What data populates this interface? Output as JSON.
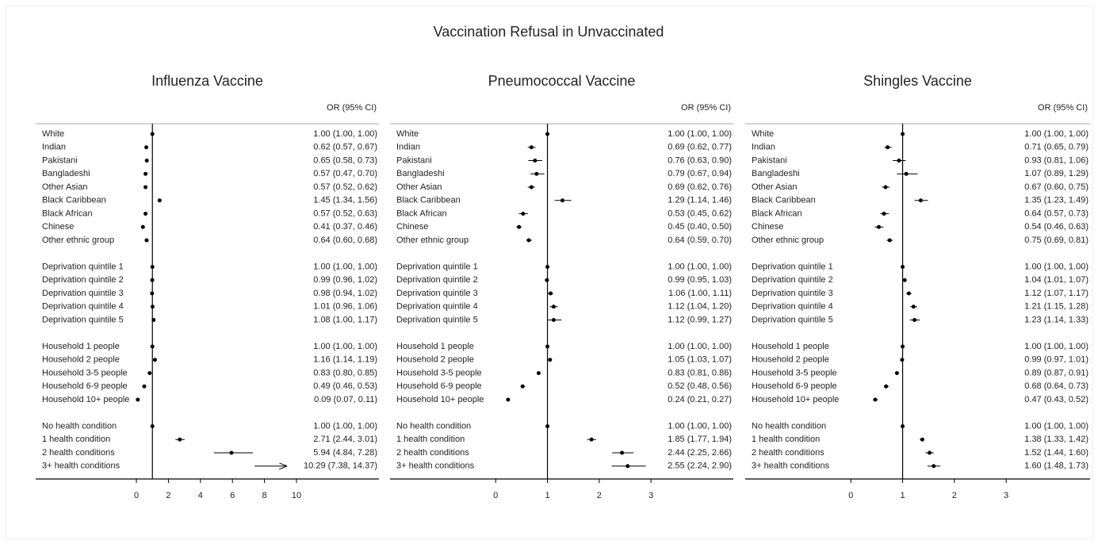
{
  "title": "Vaccination Refusal in Unvaccinated",
  "chart_data": [
    {
      "type": "forest",
      "title": "Influenza Vaccine",
      "ci_header": "OR (95% CI)",
      "reference_line": 1,
      "xlim": [
        -6.29,
        15.15
      ],
      "xticks": [
        0,
        2,
        4,
        6,
        8,
        10
      ],
      "groups": [
        {
          "categories": [
            "White",
            "Indian",
            "Pakistani",
            "Bangladeshi",
            "Other Asian",
            "Black Caribbean",
            "Black African",
            "Chinese",
            "Other ethnic group"
          ],
          "values": [
            1.0,
            0.62,
            0.65,
            0.57,
            0.57,
            1.45,
            0.57,
            0.41,
            0.64
          ],
          "lower": [
            1.0,
            0.57,
            0.58,
            0.47,
            0.52,
            1.34,
            0.52,
            0.37,
            0.6
          ],
          "upper": [
            1.0,
            0.67,
            0.73,
            0.7,
            0.62,
            1.56,
            0.63,
            0.46,
            0.68
          ],
          "value_labels": [
            "1.00 (1.00, 1.00)",
            "0.62 (0.57, 0.67)",
            "0.65 (0.58, 0.73)",
            "0.57 (0.47, 0.70)",
            "0.57 (0.52, 0.62)",
            "1.45 (1.34, 1.56)",
            "0.57 (0.52, 0.63)",
            "0.41 (0.37, 0.46)",
            "0.64 (0.60, 0.68)"
          ]
        },
        {
          "categories": [
            "Deprivation quintile 1",
            "Deprivation quintile 2",
            "Deprivation quintile 3",
            "Deprivation quintile 4",
            "Deprivation quintile 5"
          ],
          "values": [
            1.0,
            0.99,
            0.98,
            1.01,
            1.08
          ],
          "lower": [
            1.0,
            0.96,
            0.94,
            0.96,
            1.0
          ],
          "upper": [
            1.0,
            1.02,
            1.02,
            1.06,
            1.17
          ],
          "value_labels": [
            "1.00 (1.00, 1.00)",
            "0.99 (0.96, 1.02)",
            "0.98 (0.94, 1.02)",
            "1.01 (0.96, 1.06)",
            "1.08 (1.00, 1.17)"
          ]
        },
        {
          "categories": [
            "Household 1 people",
            "Household 2 people",
            "Household 3-5 people",
            "Household 6-9 people",
            "Household 10+ people"
          ],
          "values": [
            1.0,
            1.16,
            0.83,
            0.49,
            0.09
          ],
          "lower": [
            1.0,
            1.14,
            0.8,
            0.46,
            0.07
          ],
          "upper": [
            1.0,
            1.19,
            0.85,
            0.53,
            0.11
          ],
          "value_labels": [
            "1.00 (1.00, 1.00)",
            "1.16 (1.14, 1.19)",
            "0.83 (0.80, 0.85)",
            "0.49 (0.46, 0.53)",
            "0.09 (0.07, 0.11)"
          ]
        },
        {
          "categories": [
            "No health condition",
            "1 health condition",
            "2 health conditions",
            "3+ health conditions"
          ],
          "values": [
            1.0,
            2.71,
            5.94,
            10.29
          ],
          "lower": [
            1.0,
            2.44,
            4.84,
            7.38
          ],
          "upper": [
            1.0,
            3.01,
            7.28,
            14.37
          ],
          "value_labels": [
            "1.00 (1.00, 1.00)",
            "2.71 (2.44, 3.01)",
            "5.94 (4.84, 7.28)",
            "10.29 (7.38, 14.37)"
          ]
        }
      ]
    },
    {
      "type": "forest",
      "title": "Pneumococcal Vaccine",
      "ci_header": "OR (95% CI)",
      "reference_line": 1,
      "xlim": [
        -2.04,
        4.59
      ],
      "xticks": [
        0,
        1,
        2,
        3
      ],
      "groups": [
        {
          "categories": [
            "White",
            "Indian",
            "Pakistani",
            "Bangladeshi",
            "Other Asian",
            "Black Caribbean",
            "Black African",
            "Chinese",
            "Other ethnic group"
          ],
          "values": [
            1.0,
            0.69,
            0.76,
            0.79,
            0.69,
            1.29,
            0.53,
            0.45,
            0.64
          ],
          "lower": [
            1.0,
            0.62,
            0.63,
            0.67,
            0.62,
            1.14,
            0.45,
            0.4,
            0.59
          ],
          "upper": [
            1.0,
            0.77,
            0.9,
            0.94,
            0.76,
            1.46,
            0.62,
            0.5,
            0.7
          ],
          "value_labels": [
            "1.00 (1.00, 1.00)",
            "0.69 (0.62, 0.77)",
            "0.76 (0.63, 0.90)",
            "0.79 (0.67, 0.94)",
            "0.69 (0.62, 0.76)",
            "1.29 (1.14, 1.46)",
            "0.53 (0.45, 0.62)",
            "0.45 (0.40, 0.50)",
            "0.64 (0.59, 0.70)"
          ]
        },
        {
          "categories": [
            "Deprivation quintile 1",
            "Deprivation quintile 2",
            "Deprivation quintile 3",
            "Deprivation quintile 4",
            "Deprivation quintile 5"
          ],
          "values": [
            1.0,
            0.99,
            1.06,
            1.12,
            1.12
          ],
          "lower": [
            1.0,
            0.95,
            1.0,
            1.04,
            0.99
          ],
          "upper": [
            1.0,
            1.03,
            1.11,
            1.2,
            1.27
          ],
          "value_labels": [
            "1.00 (1.00, 1.00)",
            "0.99 (0.95, 1.03)",
            "1.06 (1.00, 1.11)",
            "1.12 (1.04, 1.20)",
            "1.12 (0.99, 1.27)"
          ]
        },
        {
          "categories": [
            "Household 1 people",
            "Household 2 people",
            "Household 3-5 people",
            "Household 6-9 people",
            "Household 10+ people"
          ],
          "values": [
            1.0,
            1.05,
            0.83,
            0.52,
            0.24
          ],
          "lower": [
            1.0,
            1.03,
            0.81,
            0.48,
            0.21
          ],
          "upper": [
            1.0,
            1.07,
            0.86,
            0.56,
            0.27
          ],
          "value_labels": [
            "1.00 (1.00, 1.00)",
            "1.05 (1.03, 1.07)",
            "0.83 (0.81, 0.86)",
            "0.52 (0.48, 0.56)",
            "0.24 (0.21, 0.27)"
          ]
        },
        {
          "categories": [
            "No health condition",
            "1 health condition",
            "2 health conditions",
            "3+ health conditions"
          ],
          "values": [
            1.0,
            1.85,
            2.44,
            2.55
          ],
          "lower": [
            1.0,
            1.77,
            2.25,
            2.24
          ],
          "upper": [
            1.0,
            1.94,
            2.66,
            2.9
          ],
          "value_labels": [
            "1.00 (1.00, 1.00)",
            "1.85 (1.77, 1.94)",
            "2.44 (2.25, 2.66)",
            "2.55 (2.24, 2.90)"
          ]
        }
      ]
    },
    {
      "type": "forest",
      "title": "Shingles Vaccine",
      "ci_header": "OR (95% CI)",
      "reference_line": 1,
      "xlim": [
        -2.04,
        4.62
      ],
      "xticks": [
        0,
        1,
        2,
        3
      ],
      "groups": [
        {
          "categories": [
            "White",
            "Indian",
            "Pakistani",
            "Bangladeshi",
            "Other Asian",
            "Black Caribbean",
            "Black African",
            "Chinese",
            "Other ethnic group"
          ],
          "values": [
            1.0,
            0.71,
            0.93,
            1.07,
            0.67,
            1.35,
            0.64,
            0.54,
            0.75
          ],
          "lower": [
            1.0,
            0.65,
            0.81,
            0.89,
            0.6,
            1.23,
            0.57,
            0.46,
            0.69
          ],
          "upper": [
            1.0,
            0.79,
            1.06,
            1.29,
            0.75,
            1.49,
            0.73,
            0.63,
            0.81
          ],
          "value_labels": [
            "1.00 (1.00, 1.00)",
            "0.71 (0.65, 0.79)",
            "0.93 (0.81, 1.06)",
            "1.07 (0.89, 1.29)",
            "0.67 (0.60, 0.75)",
            "1.35 (1.23, 1.49)",
            "0.64 (0.57, 0.73)",
            "0.54 (0.46, 0.63)",
            "0.75 (0.69, 0.81)"
          ]
        },
        {
          "categories": [
            "Deprivation quintile 1",
            "Deprivation quintile 2",
            "Deprivation quintile 3",
            "Deprivation quintile 4",
            "Deprivation quintile 5"
          ],
          "values": [
            1.0,
            1.04,
            1.12,
            1.21,
            1.23
          ],
          "lower": [
            1.0,
            1.01,
            1.07,
            1.15,
            1.14
          ],
          "upper": [
            1.0,
            1.07,
            1.17,
            1.28,
            1.33
          ],
          "value_labels": [
            "1.00 (1.00, 1.00)",
            "1.04 (1.01, 1.07)",
            "1.12 (1.07, 1.17)",
            "1.21 (1.15, 1.28)",
            "1.23 (1.14, 1.33)"
          ]
        },
        {
          "categories": [
            "Household 1 people",
            "Household 2 people",
            "Household 3-5 people",
            "Household 6-9 people",
            "Household 10+ people"
          ],
          "values": [
            1.0,
            0.99,
            0.89,
            0.68,
            0.47
          ],
          "lower": [
            1.0,
            0.97,
            0.87,
            0.64,
            0.43
          ],
          "upper": [
            1.0,
            1.01,
            0.91,
            0.73,
            0.52
          ],
          "value_labels": [
            "1.00 (1.00, 1.00)",
            "0.99 (0.97, 1.01)",
            "0.89 (0.87, 0.91)",
            "0.68 (0.64, 0.73)",
            "0.47 (0.43, 0.52)"
          ]
        },
        {
          "categories": [
            "No health condition",
            "1 health condition",
            "2 health conditions",
            "3+ health conditions"
          ],
          "values": [
            1.0,
            1.38,
            1.52,
            1.6
          ],
          "lower": [
            1.0,
            1.33,
            1.44,
            1.48
          ],
          "upper": [
            1.0,
            1.42,
            1.6,
            1.73
          ],
          "value_labels": [
            "1.00 (1.00, 1.00)",
            "1.38 (1.33, 1.42)",
            "1.52 (1.44, 1.60)",
            "1.60 (1.48, 1.73)"
          ]
        }
      ]
    }
  ]
}
